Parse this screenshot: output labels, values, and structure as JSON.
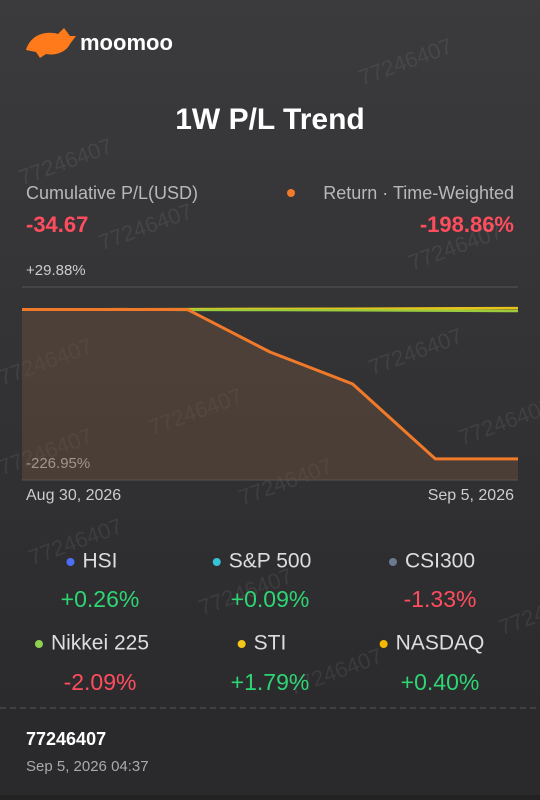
{
  "header": {
    "brand": "moomoo"
  },
  "watermark": "77246407",
  "chart_data": {
    "type": "line",
    "title": "1W P/L Trend",
    "metric_label": "Cumulative P/L(USD)",
    "metric_value": "-34.67",
    "return_value": "-198.86%",
    "categories": [
      "Aug 30, 2026",
      null,
      null,
      null,
      null,
      null,
      "Sep 5, 2026"
    ],
    "series": [
      {
        "name": "Return · Time-Weighted",
        "color": "#f07a2a",
        "values": [
          0,
          0,
          0,
          -56.6,
          -99.2,
          -198.86,
          -198.86
        ]
      },
      {
        "color": "#9ccc3c",
        "values": [
          0,
          0,
          -0.5,
          -0.8,
          -1.0,
          -1.5,
          -2.09
        ]
      },
      {
        "color": "#e8c21c",
        "values": [
          0,
          0.3,
          0.5,
          0.8,
          1.0,
          1.5,
          1.79
        ]
      }
    ],
    "ylim": [
      -226.95,
      29.88
    ],
    "yticks": [
      {
        "value": 29.88,
        "label": "+29.88%"
      },
      {
        "value": -226.95,
        "label": "-226.95%"
      }
    ]
  },
  "indices": [
    {
      "name": "HSI",
      "color": "#4f6ef7",
      "value": 0.26,
      "value_label": "+0.26%"
    },
    {
      "name": "S&P 500",
      "color": "#36c3d6",
      "value": 0.09,
      "value_label": "+0.09%"
    },
    {
      "name": "CSI300",
      "color": "#6b7a90",
      "value": -1.33,
      "value_label": "-1.33%"
    },
    {
      "name": "Nikkei 225",
      "color": "#8fd14f",
      "value": -2.09,
      "value_label": "-2.09%"
    },
    {
      "name": "STI",
      "color": "#f5c518",
      "value": 1.79,
      "value_label": "+1.79%"
    },
    {
      "name": "NASDAQ",
      "color": "#f5b800",
      "value": 0.4,
      "value_label": "+0.40%"
    }
  ],
  "footer": {
    "account": "77246407",
    "timestamp": "Sep 5, 2026 04:37"
  }
}
